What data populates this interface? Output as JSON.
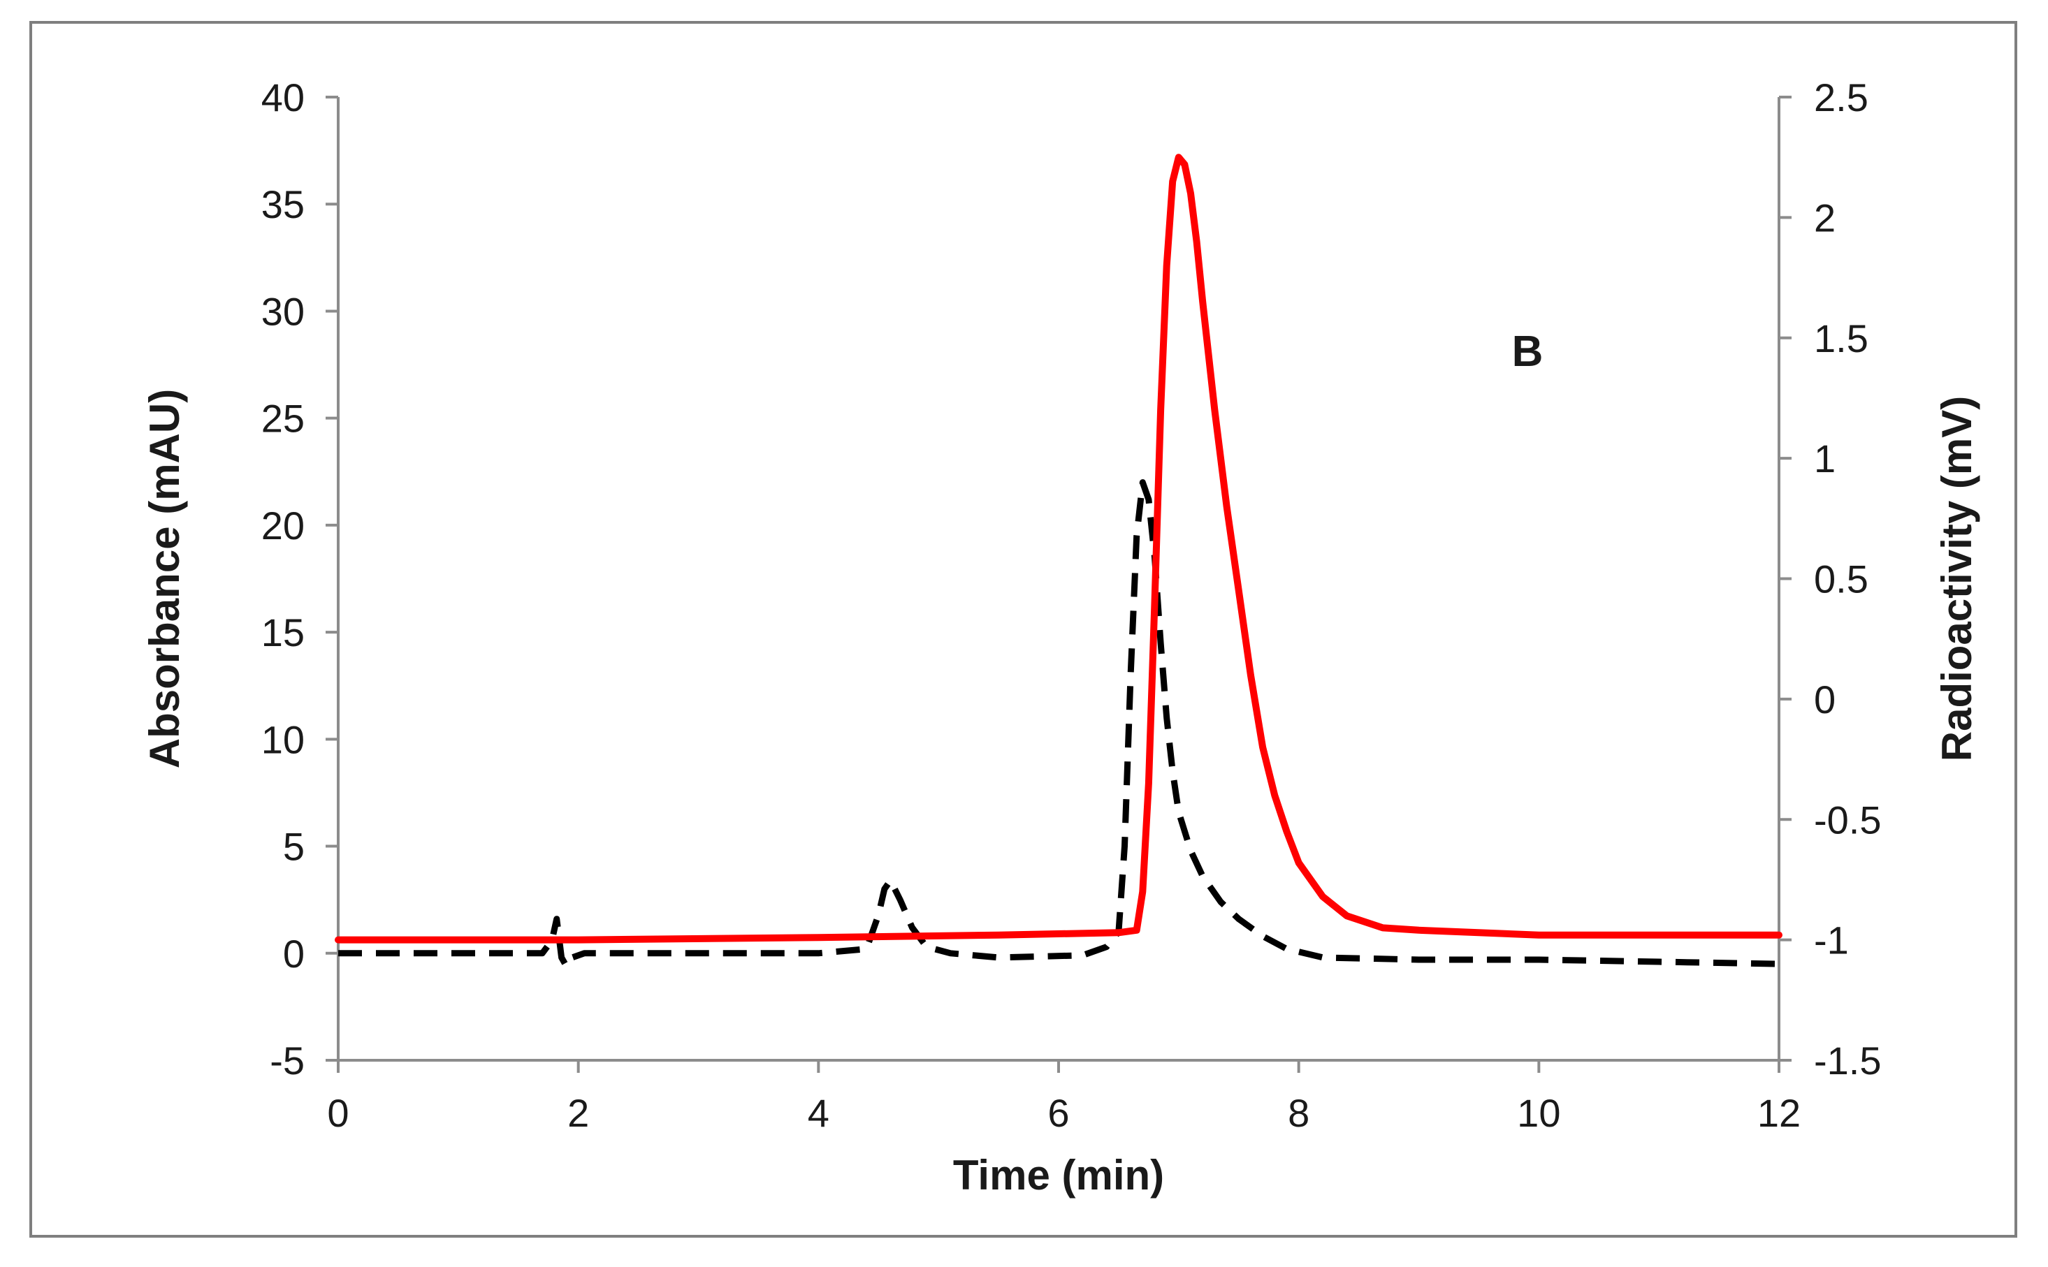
{
  "chart_data": {
    "type": "line",
    "panel_label": "B",
    "xlabel": "Time (min)",
    "ylabel_left": "Absorbance (mAU)",
    "ylabel_right": "Radioactivity (mV)",
    "xlim": [
      0,
      12
    ],
    "ylim_left": [
      -5,
      40
    ],
    "ylim_right": [
      -1.5,
      2.5
    ],
    "x_ticks": [
      "0",
      "2",
      "4",
      "6",
      "8",
      "10",
      "12"
    ],
    "x_tick_values": [
      0,
      2,
      4,
      6,
      8,
      10,
      12
    ],
    "y_left_ticks": [
      "-5",
      "0",
      "5",
      "10",
      "15",
      "20",
      "25",
      "30",
      "35",
      "40"
    ],
    "y_left_tick_values": [
      -5,
      0,
      5,
      10,
      15,
      20,
      25,
      30,
      35,
      40
    ],
    "y_right_ticks": [
      "-1.5",
      "-1",
      "-0.5",
      "0",
      "0.5",
      "1",
      "1.5",
      "2",
      "2.5"
    ],
    "y_right_tick_values": [
      -1.5,
      -1,
      -0.5,
      0,
      0.5,
      1,
      1.5,
      2,
      2.5
    ],
    "grid": false,
    "series": [
      {
        "name": "Absorbance",
        "axis": "left",
        "style": "dashed",
        "color": "#000000",
        "x": [
          0,
          1.7,
          1.78,
          1.82,
          1.86,
          1.9,
          1.95,
          2.05,
          3.0,
          4.0,
          4.4,
          4.5,
          4.55,
          4.6,
          4.68,
          4.78,
          4.9,
          5.1,
          5.5,
          6.2,
          6.4,
          6.5,
          6.55,
          6.6,
          6.65,
          6.7,
          6.75,
          6.8,
          6.85,
          6.9,
          6.95,
          7.0,
          7.1,
          7.2,
          7.35,
          7.5,
          7.7,
          7.9,
          8.2,
          9.0,
          10.0,
          11.0,
          12.0
        ],
        "y": [
          0,
          0,
          0.6,
          1.6,
          -0.2,
          -0.6,
          -0.2,
          0,
          0,
          0,
          0.2,
          1.8,
          3.0,
          3.4,
          2.5,
          1.2,
          0.3,
          0,
          -0.2,
          -0.1,
          0.3,
          1.0,
          5.0,
          13.0,
          19.5,
          22.0,
          21.2,
          18.5,
          14.5,
          11.0,
          8.5,
          6.6,
          4.8,
          3.6,
          2.4,
          1.6,
          0.8,
          0.2,
          -0.2,
          -0.3,
          -0.3,
          -0.4,
          -0.5
        ]
      },
      {
        "name": "Radioactivity",
        "axis": "right",
        "style": "solid",
        "color": "#ff0000",
        "x": [
          0,
          2.0,
          4.0,
          5.5,
          6.5,
          6.65,
          6.7,
          6.75,
          6.8,
          6.85,
          6.9,
          6.95,
          7.0,
          7.05,
          7.1,
          7.15,
          7.2,
          7.3,
          7.4,
          7.5,
          7.6,
          7.7,
          7.8,
          7.9,
          8.0,
          8.2,
          8.4,
          8.7,
          9.0,
          10.0,
          11.0,
          12.0
        ],
        "y": [
          -1.0,
          -1.0,
          -0.99,
          -0.98,
          -0.97,
          -0.96,
          -0.8,
          -0.35,
          0.4,
          1.2,
          1.8,
          2.15,
          2.25,
          2.22,
          2.1,
          1.9,
          1.65,
          1.2,
          0.8,
          0.45,
          0.1,
          -0.2,
          -0.4,
          -0.55,
          -0.68,
          -0.82,
          -0.9,
          -0.95,
          -0.96,
          -0.98,
          -0.98,
          -0.98
        ]
      }
    ]
  }
}
